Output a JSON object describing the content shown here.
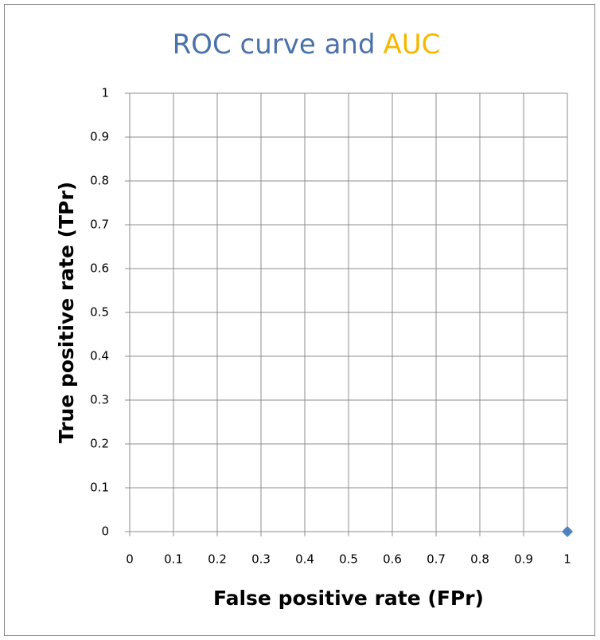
{
  "chart_data": {
    "type": "scatter",
    "title": [
      {
        "text": "ROC curve and",
        "color": "#4a72a8"
      },
      {
        "text": "AUC",
        "color": "#f5b800"
      }
    ],
    "x_label": "False positive rate (FPr)",
    "y_label": "True positive rate (TPr)",
    "x": [
      1
    ],
    "values": [
      0
    ],
    "color": "#4f81bd",
    "xlim": [
      0,
      1
    ],
    "xticks": [
      0,
      0.1,
      0.2,
      0.3,
      0.4,
      0.5,
      0.6,
      0.7,
      0.8,
      0.9,
      1
    ],
    "ylim": [
      0,
      1
    ],
    "yticks": [
      0,
      0.1,
      0.2,
      0.3,
      0.4,
      0.5,
      0.6,
      0.7,
      0.8,
      0.9,
      1
    ],
    "grid": true
  }
}
